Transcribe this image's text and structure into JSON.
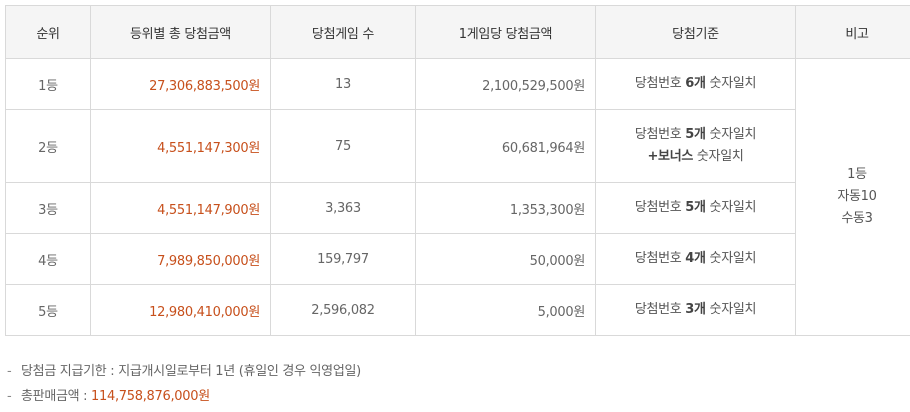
{
  "table": {
    "headers": [
      "순위",
      "등위별 총 당첨금액",
      "당첨게임 수",
      "1게임당 당첨금액",
      "당첨기준",
      "비고"
    ],
    "rows": [
      {
        "rank": "1등",
        "total": "27,306,883,500원",
        "winners": "13",
        "per_game": "2,100,529,500원",
        "crit_pre": "당첨번호 ",
        "crit_bold": "6개",
        "crit_post": " 숫자일치",
        "crit_line2_pre": "",
        "crit_line2_bold": "",
        "crit_line2_post": ""
      },
      {
        "rank": "2등",
        "total": "4,551,147,300원",
        "winners": "75",
        "per_game": "60,681,964원",
        "crit_pre": "당첨번호 ",
        "crit_bold": "5개",
        "crit_post": " 숫자일치",
        "crit_line2_pre": "",
        "crit_line2_bold": "+보너스",
        "crit_line2_post": " 숫자일치"
      },
      {
        "rank": "3등",
        "total": "4,551,147,900원",
        "winners": "3,363",
        "per_game": "1,353,300원",
        "crit_pre": "당첨번호 ",
        "crit_bold": "5개",
        "crit_post": " 숫자일치"
      },
      {
        "rank": "4등",
        "total": "7,989,850,000원",
        "winners": "159,797",
        "per_game": "50,000원",
        "crit_pre": "당첨번호 ",
        "crit_bold": "4개",
        "crit_post": " 숫자일치"
      },
      {
        "rank": "5등",
        "total": "12,980,410,000원",
        "winners": "2,596,082",
        "per_game": "5,000원",
        "crit_pre": "당첨번호 ",
        "crit_bold": "3개",
        "crit_post": " 숫자일치"
      }
    ],
    "remark": {
      "line1": "1등",
      "line2": "자동10",
      "line3": "수동3"
    }
  },
  "notes": {
    "dash": "-",
    "deadline": "당첨금 지급기한 : 지급개시일로부터 1년 (휴일인 경우 익영업일)",
    "sales_label": "총판매금액 : ",
    "sales_value": "114,758,876,000원"
  },
  "colors": {
    "accent": "#c7501c",
    "header_bg": "#f5f5f5",
    "border": "#d9d9d9"
  }
}
